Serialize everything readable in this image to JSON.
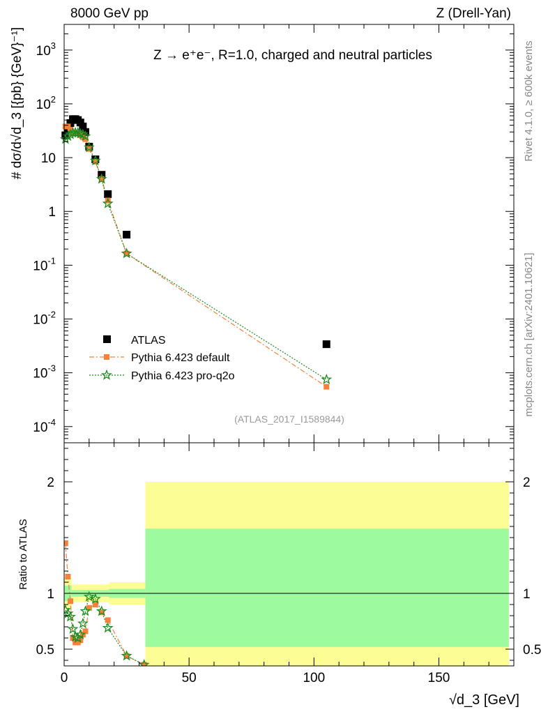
{
  "header": {
    "left": "8000 GeV pp",
    "right": "Z (Drell-Yan)"
  },
  "side": {
    "rivet": "Rivet 4.1.0, ≥ 600k events",
    "mcplots": "mcplots.cern.ch [arXiv:2401.10621]"
  },
  "chart_data": [
    {
      "type": "scatter",
      "title": "Z → e⁺e⁻, R=1.0, charged and neutral particles",
      "analysis_id": "(ATLAS_2017_I1589844)",
      "ylabel": "# dσ/d√d_3 [{pb} {GeV}⁻¹]",
      "yscale": "log",
      "ylim": [
        5e-05,
        3000
      ],
      "xlim": [
        0,
        180
      ],
      "xticks": [
        0,
        50,
        100,
        150
      ],
      "yticks": [
        {
          "v": 0.0001,
          "base": "10",
          "exp": "-4"
        },
        {
          "v": 0.001,
          "base": "10",
          "exp": "-3"
        },
        {
          "v": 0.01,
          "base": "10",
          "exp": "-2"
        },
        {
          "v": 0.1,
          "base": "10",
          "exp": "-1"
        },
        {
          "v": 1,
          "base": "1",
          "exp": ""
        },
        {
          "v": 10,
          "base": "10",
          "exp": ""
        },
        {
          "v": 100,
          "base": "10",
          "exp": "2"
        },
        {
          "v": 1000,
          "base": "10",
          "exp": "3"
        }
      ],
      "legend_position": "bottom-left",
      "series": [
        {
          "name": "ATLAS",
          "color": "#000000",
          "marker": "square",
          "x": [
            0.5,
            1.5,
            2.5,
            3.5,
            4.5,
            5.5,
            6.5,
            7.5,
            8.5,
            10.0,
            12.5,
            15.0,
            17.5,
            25.0,
            105.0
          ],
          "y": [
            26,
            33,
            44,
            52,
            52,
            50,
            45,
            38,
            30,
            16,
            9.3,
            4.8,
            2.1,
            0.37,
            0.0034
          ]
        },
        {
          "name": "Pythia 6.423 default",
          "color": "#f5813b",
          "marker": "square-small",
          "x": [
            0.5,
            1.5,
            2.5,
            3.5,
            4.5,
            5.5,
            6.5,
            7.5,
            8.5,
            10.0,
            12.5,
            15.0,
            17.5,
            25.0,
            105.0
          ],
          "y": [
            38,
            38,
            33,
            29,
            29,
            28,
            26,
            24,
            22,
            14.5,
            8.4,
            4.0,
            1.6,
            0.165,
            0.00055
          ]
        },
        {
          "name": "Pythia 6.423 pro-q2o",
          "color": "#1e8a1e",
          "marker": "star",
          "x": [
            0.5,
            1.5,
            2.5,
            3.5,
            4.5,
            5.5,
            6.5,
            7.5,
            8.5,
            10.0,
            12.5,
            15.0,
            17.5,
            25.0,
            105.0
          ],
          "y": [
            22,
            25,
            27,
            29,
            29,
            29,
            28,
            27,
            25,
            15.5,
            8.8,
            4.0,
            1.4,
            0.165,
            0.00075
          ]
        }
      ]
    },
    {
      "type": "scatter",
      "title": "",
      "ylabel": "Ratio to ATLAS",
      "xlabel": "√d_3 [GeV]",
      "xlim": [
        0,
        180
      ],
      "ylim": [
        0.35,
        2.35
      ],
      "xticks": [
        0,
        50,
        100,
        150
      ],
      "yticks": [
        0.5,
        1,
        2
      ],
      "reference_line": 1,
      "bands": [
        {
          "x0": 0,
          "x1": 3,
          "inner": [
            0.93,
            1.07
          ],
          "outer": [
            0.86,
            1.14
          ]
        },
        {
          "x0": 3,
          "x1": 18,
          "inner": [
            0.97,
            1.03
          ],
          "outer": [
            0.92,
            1.08
          ]
        },
        {
          "x0": 18,
          "x1": 32.5,
          "inner": [
            0.96,
            1.04
          ],
          "outer": [
            0.9,
            1.1
          ]
        },
        {
          "x0": 32.5,
          "x1": 178,
          "inner": [
            0.52,
            1.58
          ],
          "outer": [
            0.33,
            2.0
          ]
        }
      ],
      "band_colors": {
        "outer": "#fdfd95",
        "inner": "#9efa9e"
      },
      "series": [
        {
          "name": "Pythia 6.423 default",
          "color": "#f5813b",
          "marker": "square-small",
          "x": [
            0.5,
            1.5,
            2.5,
            3.5,
            4.5,
            5.5,
            6.5,
            7.5,
            8.5,
            10.0,
            12.5,
            15.0,
            17.5,
            25.0,
            32.0
          ],
          "y": [
            1.45,
            1.15,
            0.93,
            0.6,
            0.56,
            0.56,
            0.58,
            0.63,
            0.66,
            0.87,
            0.9,
            0.83,
            0.76,
            0.44,
            0.36
          ]
        },
        {
          "name": "Pythia 6.423 pro-q2o",
          "color": "#1e8a1e",
          "marker": "star",
          "x": [
            0.5,
            1.5,
            2.5,
            3.5,
            4.5,
            5.5,
            6.5,
            7.5,
            8.5,
            10.0,
            12.5,
            15.0,
            17.5,
            25.0,
            32.0
          ],
          "y": [
            0.85,
            0.82,
            0.79,
            0.68,
            0.61,
            0.6,
            0.63,
            0.73,
            0.84,
            0.97,
            0.95,
            0.84,
            0.69,
            0.44,
            0.36
          ]
        }
      ]
    }
  ]
}
